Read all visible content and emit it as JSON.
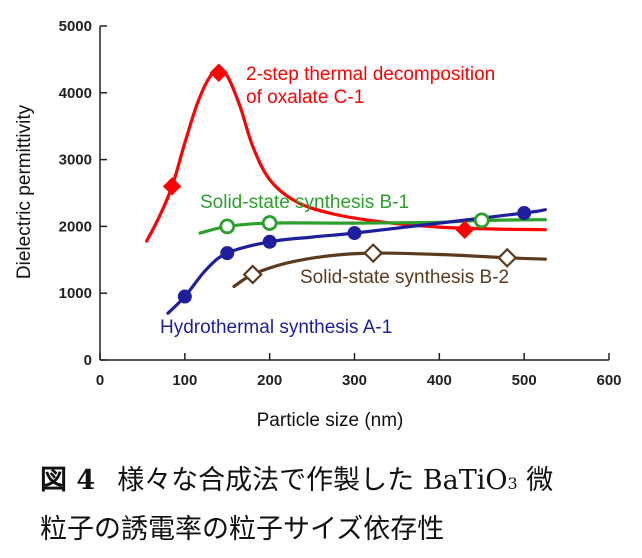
{
  "chart_data": {
    "type": "line",
    "xlabel": "Particle size (nm)",
    "ylabel": "Dielectric permittivity",
    "xlim": [
      0,
      600
    ],
    "ylim": [
      0,
      5000
    ],
    "xticks": [
      0,
      100,
      200,
      300,
      400,
      500,
      600
    ],
    "yticks": [
      0,
      1000,
      2000,
      3000,
      4000,
      5000
    ],
    "grid": false,
    "series": [
      {
        "name": "2-step thermal decomposition of oxalate C-1",
        "label_lines": [
          "2-step thermal decomposition",
          "of oxalate C-1"
        ],
        "color": "#ff0000",
        "marker": "diamond-filled",
        "points": [
          [
            85,
            2600
          ],
          [
            140,
            4300
          ],
          [
            430,
            1950
          ]
        ],
        "curve": [
          [
            55,
            1780
          ],
          [
            70,
            2150
          ],
          [
            85,
            2600
          ],
          [
            100,
            3250
          ],
          [
            115,
            3850
          ],
          [
            130,
            4250
          ],
          [
            140,
            4330
          ],
          [
            150,
            4250
          ],
          [
            165,
            3800
          ],
          [
            180,
            3200
          ],
          [
            200,
            2700
          ],
          [
            230,
            2380
          ],
          [
            270,
            2200
          ],
          [
            330,
            2070
          ],
          [
            400,
            1990
          ],
          [
            470,
            1960
          ],
          [
            525,
            1950
          ]
        ]
      },
      {
        "name": "Solid-state synthesis B-1",
        "label_lines": [
          "Solid-state synthesis B-1"
        ],
        "color": "#2ca02c",
        "marker": "circle-open",
        "points": [
          [
            150,
            2000
          ],
          [
            200,
            2050
          ],
          [
            450,
            2090
          ]
        ],
        "curve": [
          [
            118,
            1900
          ],
          [
            150,
            2000
          ],
          [
            200,
            2050
          ],
          [
            300,
            2050
          ],
          [
            400,
            2060
          ],
          [
            450,
            2090
          ],
          [
            525,
            2100
          ]
        ]
      },
      {
        "name": "Hydrothermal synthesis A-1",
        "label_lines": [
          "Hydrothermal synthesis A-1"
        ],
        "color": "#1f1f9e",
        "marker": "circle-filled",
        "points": [
          [
            100,
            950
          ],
          [
            150,
            1600
          ],
          [
            200,
            1770
          ],
          [
            300,
            1900
          ],
          [
            500,
            2200
          ]
        ],
        "curve": [
          [
            80,
            700
          ],
          [
            100,
            950
          ],
          [
            125,
            1350
          ],
          [
            150,
            1600
          ],
          [
            200,
            1770
          ],
          [
            250,
            1840
          ],
          [
            300,
            1900
          ],
          [
            400,
            2050
          ],
          [
            500,
            2200
          ],
          [
            525,
            2250
          ]
        ]
      },
      {
        "name": "Solid-state synthesis B-2",
        "label_lines": [
          "Solid-state synthesis B-2"
        ],
        "color": "#5c3a1e",
        "marker": "diamond-open",
        "points": [
          [
            180,
            1280
          ],
          [
            322,
            1600
          ],
          [
            480,
            1530
          ]
        ],
        "curve": [
          [
            158,
            1100
          ],
          [
            180,
            1280
          ],
          [
            220,
            1450
          ],
          [
            270,
            1560
          ],
          [
            322,
            1600
          ],
          [
            400,
            1580
          ],
          [
            480,
            1530
          ],
          [
            525,
            1510
          ]
        ]
      }
    ]
  },
  "caption": {
    "figure_label": "図 4",
    "line1_before": "様々な合成法で作製した BaTiO",
    "line1_sub": "3",
    "line1_after": " 微",
    "line2": "粒子の誘電率の粒子サイズ依存性"
  }
}
